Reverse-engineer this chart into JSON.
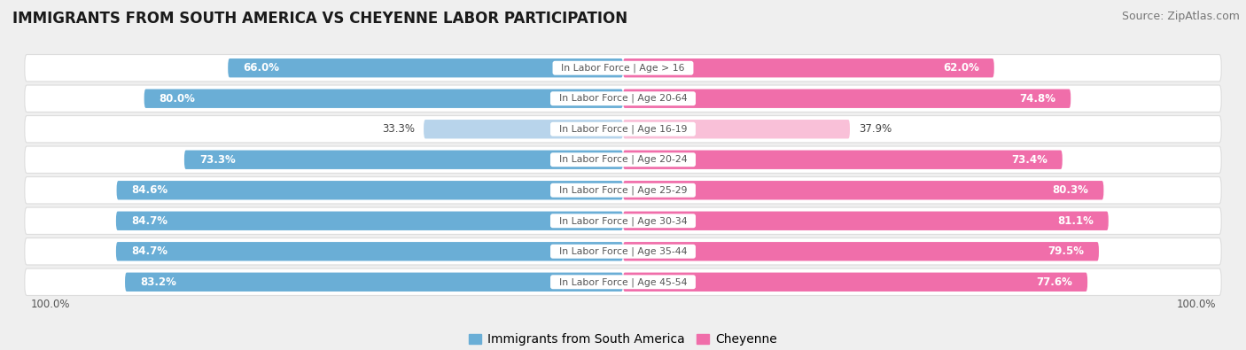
{
  "title": "IMMIGRANTS FROM SOUTH AMERICA VS CHEYENNE LABOR PARTICIPATION",
  "source": "Source: ZipAtlas.com",
  "categories": [
    "In Labor Force | Age > 16",
    "In Labor Force | Age 20-64",
    "In Labor Force | Age 16-19",
    "In Labor Force | Age 20-24",
    "In Labor Force | Age 25-29",
    "In Labor Force | Age 30-34",
    "In Labor Force | Age 35-44",
    "In Labor Force | Age 45-54"
  ],
  "left_values": [
    66.0,
    80.0,
    33.3,
    73.3,
    84.6,
    84.7,
    84.7,
    83.2
  ],
  "right_values": [
    62.0,
    74.8,
    37.9,
    73.4,
    80.3,
    81.1,
    79.5,
    77.6
  ],
  "left_color": "#6aaed6",
  "right_color": "#f06eaa",
  "left_color_light": "#b8d4eb",
  "right_color_light": "#f9c0d8",
  "bg_color": "#efefef",
  "row_bg_color": "#fafafa",
  "row_alt_bg": "#f3f3f3",
  "center_label_color": "#555555",
  "left_label": "Immigrants from South America",
  "right_label": "Cheyenne",
  "max_val": 100.0,
  "title_fontsize": 12,
  "bar_height": 0.62,
  "legend_fontsize": 10,
  "light_indices": [
    2
  ]
}
